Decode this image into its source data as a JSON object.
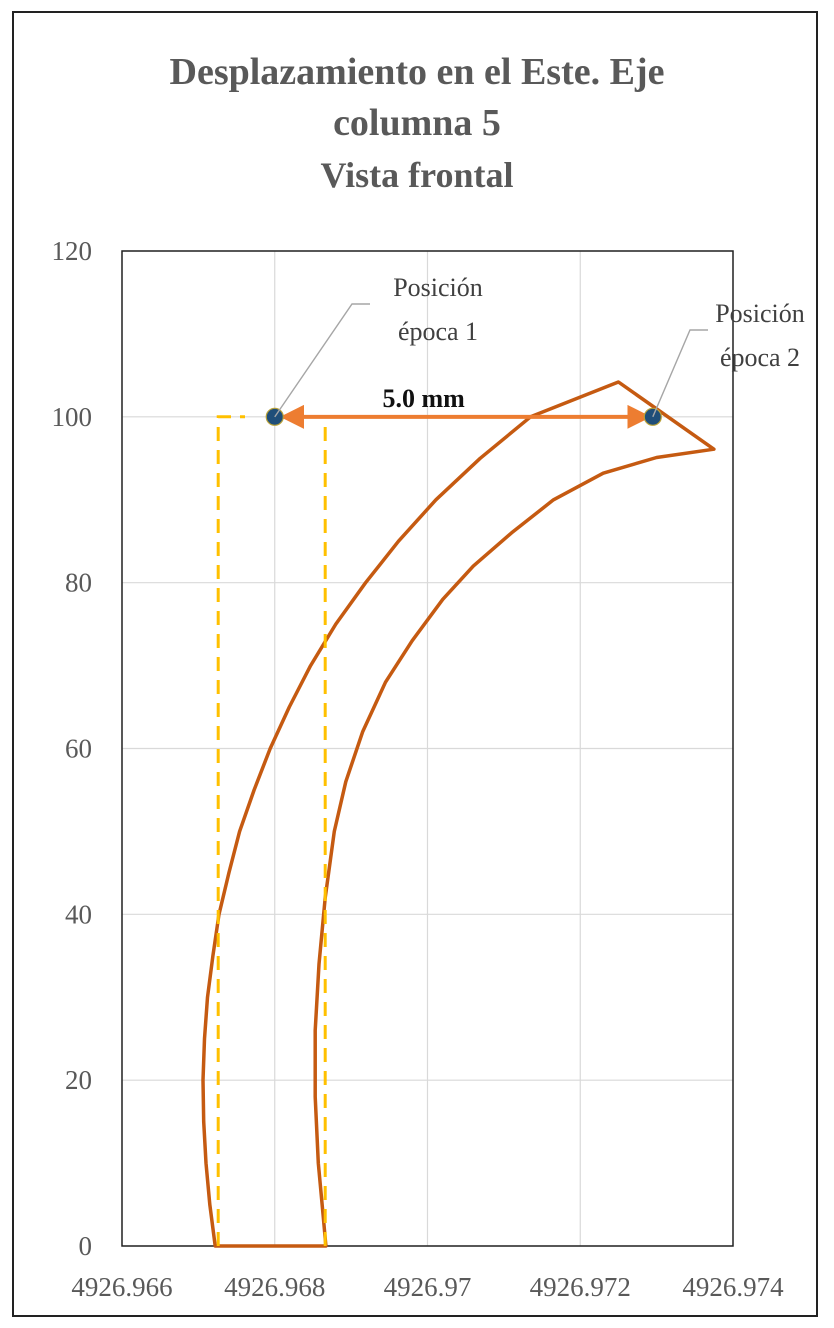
{
  "chart_data": {
    "type": "line",
    "title": "Desplazamiento en el Este. Eje columna 5",
    "title_lines": [
      "Desplazamiento en el Este. Eje",
      "columna 5",
      "Vista frontal"
    ],
    "xlabel": "",
    "ylabel": "",
    "xlim": [
      4926.966,
      4926.974
    ],
    "ylim": [
      0,
      120
    ],
    "x_ticks": [
      4926.966,
      4926.968,
      4926.97,
      4926.972,
      4926.974
    ],
    "x_tick_labels": [
      "4926.966",
      "4926.968",
      "4926.97",
      "4926.972",
      "4926.974"
    ],
    "y_ticks": [
      0,
      20,
      40,
      60,
      80,
      100,
      120
    ],
    "y_tick_labels": [
      "0",
      "20",
      "40",
      "60",
      "80",
      "100",
      "120"
    ],
    "grid": true,
    "legend": "none",
    "colors": {
      "curve": "#c55a11",
      "guide": "#ffc000",
      "arrow": "#ed7d31",
      "point": "#1f4e79"
    },
    "series": [
      {
        "kind": "curve",
        "points": [
          [
            4926.96722,
            0
          ],
          [
            4926.96715,
            5
          ],
          [
            4926.9671,
            10
          ],
          [
            4926.96707,
            15
          ],
          [
            4926.96706,
            20
          ],
          [
            4926.96708,
            25
          ],
          [
            4926.96712,
            30
          ],
          [
            4926.96719,
            35
          ],
          [
            4926.96727,
            40
          ],
          [
            4926.9674,
            45
          ],
          [
            4926.96754,
            50
          ],
          [
            4926.96773,
            55
          ],
          [
            4926.96794,
            60
          ],
          [
            4926.96819,
            65
          ],
          [
            4926.96847,
            70
          ],
          [
            4926.9688,
            75
          ],
          [
            4926.96919,
            80
          ],
          [
            4926.96962,
            85
          ],
          [
            4926.97011,
            90
          ],
          [
            4926.97069,
            95
          ],
          [
            4926.97135,
            100
          ],
          [
            4926.9725,
            104.2
          ],
          [
            4926.97375,
            96.1
          ],
          [
            4926.973,
            95.1
          ],
          [
            4926.9723,
            93.2
          ],
          [
            4926.97165,
            90
          ],
          [
            4926.9711,
            86
          ],
          [
            4926.9706,
            82
          ],
          [
            4926.9702,
            78
          ],
          [
            4926.9698,
            73
          ],
          [
            4926.96945,
            68
          ],
          [
            4926.96915,
            62
          ],
          [
            4926.96893,
            56
          ],
          [
            4926.96878,
            50
          ],
          [
            4926.96866,
            42
          ],
          [
            4926.96858,
            34
          ],
          [
            4926.96853,
            26
          ],
          [
            4926.96853,
            18
          ],
          [
            4926.96857,
            10
          ],
          [
            4926.96863,
            4
          ],
          [
            4926.96867,
            0
          ]
        ]
      },
      {
        "kind": "guide",
        "points": [
          [
            4926.96726,
            0
          ],
          [
            4926.96726,
            100
          ],
          [
            4926.96761,
            100
          ]
        ]
      },
      {
        "kind": "guide",
        "points": [
          [
            4926.96866,
            0
          ],
          [
            4926.96866,
            100
          ],
          [
            4926.96815,
            100
          ]
        ]
      },
      {
        "kind": "arrow",
        "points": [
          [
            4926.9681,
            100
          ],
          [
            4926.9729,
            100
          ]
        ],
        "label": "5.0 mm"
      },
      {
        "kind": "point",
        "points": [
          [
            4926.968,
            100
          ],
          [
            4926.97295,
            100
          ]
        ]
      }
    ],
    "annotations": [
      {
        "text_lines": [
          "Posición",
          "época 1"
        ],
        "target": [
          4926.968,
          100
        ]
      },
      {
        "text_lines": [
          "Posición",
          "época 2"
        ],
        "target": [
          4926.97295,
          100
        ]
      }
    ]
  }
}
